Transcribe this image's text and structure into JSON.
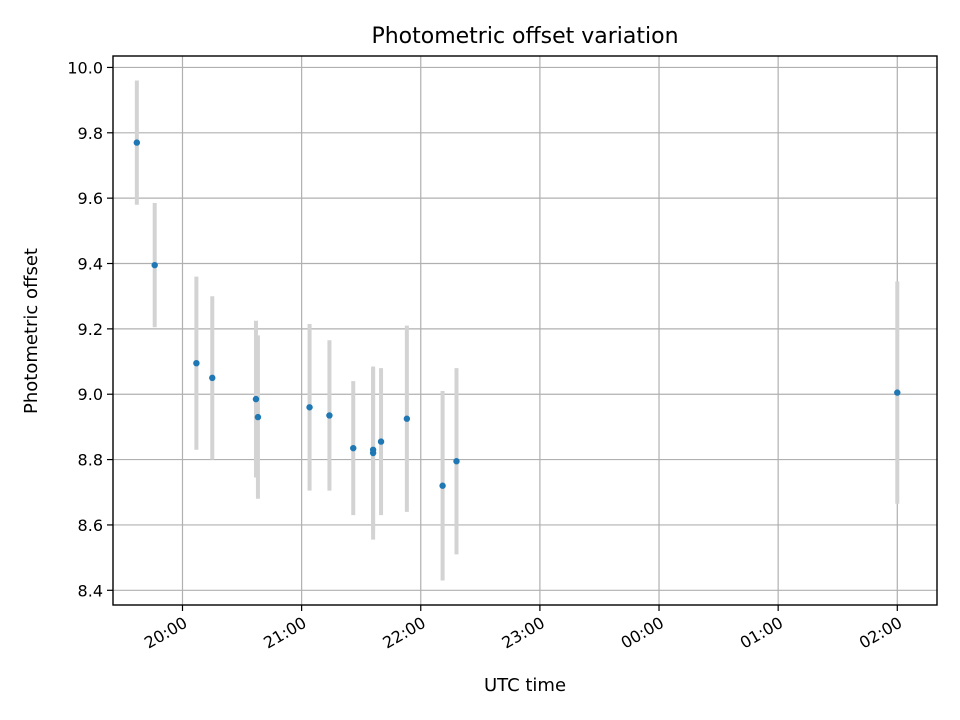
{
  "chart_data": {
    "type": "scatter",
    "title": "Photometric offset variation",
    "xlabel": "UTC time",
    "ylabel": "Photometric offset",
    "x_axis": {
      "kind": "time",
      "range": [
        "19:25",
        "02:20"
      ],
      "ticks": [
        "20:00",
        "21:00",
        "22:00",
        "23:00",
        "00:00",
        "01:00",
        "02:00"
      ]
    },
    "y_axis": {
      "range": [
        8.355,
        10.035
      ],
      "ticks": [
        8.4,
        8.6,
        8.8,
        9.0,
        9.2,
        9.4,
        9.6,
        9.8,
        10.0
      ]
    },
    "grid": true,
    "error_bar_color": "#d3d3d3",
    "marker_color": "#1f77b4",
    "points": [
      {
        "t": "19:37",
        "y": 9.77,
        "err": 0.19
      },
      {
        "t": "19:46",
        "y": 9.395,
        "err": 0.19
      },
      {
        "t": "20:07",
        "y": 9.095,
        "err": 0.265
      },
      {
        "t": "20:15",
        "y": 9.05,
        "err": 0.25
      },
      {
        "t": "20:37",
        "y": 8.985,
        "err": 0.24
      },
      {
        "t": "20:38",
        "y": 8.93,
        "err": 0.25
      },
      {
        "t": "21:04",
        "y": 8.96,
        "err": 0.255
      },
      {
        "t": "21:14",
        "y": 8.935,
        "err": 0.23
      },
      {
        "t": "21:26",
        "y": 8.835,
        "err": 0.205
      },
      {
        "t": "21:36",
        "y": 8.82,
        "err": 0.265
      },
      {
        "t": "21:36",
        "y": 8.83,
        "err": 0.25
      },
      {
        "t": "21:40",
        "y": 8.855,
        "err": 0.225
      },
      {
        "t": "21:53",
        "y": 8.925,
        "err": 0.285
      },
      {
        "t": "22:11",
        "y": 8.72,
        "err": 0.29
      },
      {
        "t": "22:18",
        "y": 8.795,
        "err": 0.285
      },
      {
        "t": "02:00",
        "y": 9.005,
        "err": 0.34
      }
    ]
  }
}
